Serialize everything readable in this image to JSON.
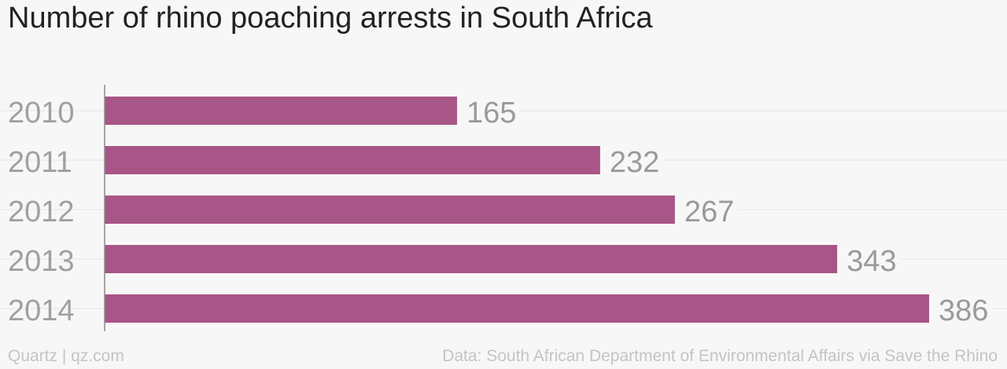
{
  "title": "Number of rhino poaching arrests in South Africa",
  "footer": {
    "credit": "Quartz | qz.com",
    "source": "Data: South African Department of Environmental Affairs via Save the Rhino"
  },
  "colors": {
    "bar": "#a85587",
    "value_label": "#9a9a9a",
    "category_label": "#a0a0a0",
    "gridline": "#e4e4e4",
    "axis": "#8a8a8a"
  },
  "chart_data": {
    "type": "bar",
    "orientation": "horizontal",
    "categories": [
      "2010",
      "2011",
      "2012",
      "2013",
      "2014"
    ],
    "values": [
      165,
      232,
      267,
      343,
      386
    ],
    "title": "Number of rhino poaching arrests in South Africa",
    "xlabel": "",
    "ylabel": "",
    "xlim": [
      0,
      386
    ],
    "grid": true,
    "legend": "none"
  }
}
